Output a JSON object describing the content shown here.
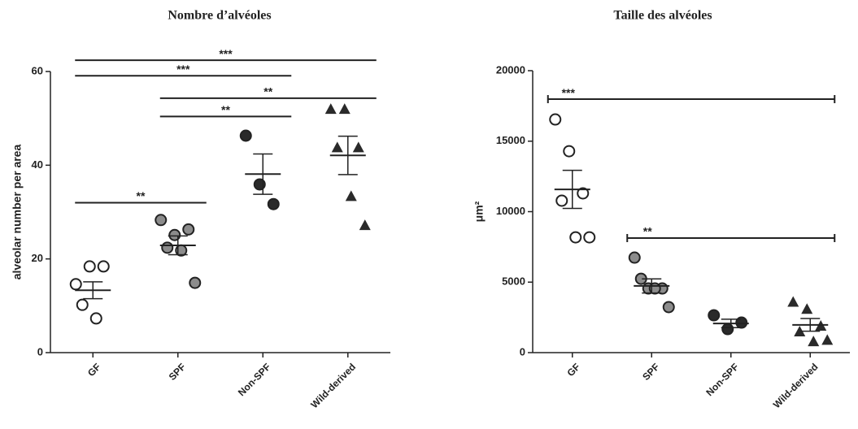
{
  "chart_data": [
    {
      "type": "dot",
      "title": "Nombre d’alvéoles",
      "y_label": "alveolar number per area",
      "categories": [
        "GF",
        "SPF",
        "Non-SPF",
        "Wild-derived"
      ],
      "points": [
        [
          14.6,
          18.4,
          18.4,
          10.2,
          7.3
        ],
        [
          28.3,
          25.1,
          26.3,
          22.4,
          21.8,
          14.9
        ],
        [
          46.3,
          35.9,
          31.7
        ],
        [
          52,
          52,
          43.8,
          43.8,
          33.4,
          27.2
        ]
      ],
      "means": [
        13.3,
        22.9,
        38.1,
        42.1
      ],
      "errors": [
        1.8,
        2.0,
        4.3,
        4.1
      ],
      "markers": [
        "open-circle",
        "gray-circle",
        "black-circle",
        "black-triangle"
      ],
      "ylim": [
        0,
        60
      ],
      "yticks": [
        0,
        20,
        40,
        60
      ],
      "brackets": [
        {
          "from": "GF",
          "to": "Wild-derived",
          "y": 62.4,
          "label": "***"
        },
        {
          "from": "GF",
          "to": "Non-SPF",
          "y": 59.1,
          "label": "***"
        },
        {
          "from": "SPF",
          "to": "Wild-derived",
          "y": 54.3,
          "label": "**"
        },
        {
          "from": "SPF",
          "to": "Non-SPF",
          "y": 50.4,
          "label": "**"
        },
        {
          "from": "GF",
          "to": "SPF",
          "y": 32,
          "label": "**"
        }
      ]
    },
    {
      "type": "dot",
      "title": "Taille des alvéoles",
      "y_label": "μm²",
      "categories": [
        "GF",
        "SPF",
        "Non-SPF",
        "Wild-derived"
      ],
      "points": [
        [
          16540,
          14290,
          11300,
          10780,
          8180,
          8180
        ],
        [
          6740,
          4550,
          4550,
          5240,
          4550,
          3230
        ],
        [
          2650,
          1670,
          2130
        ],
        [
          3600,
          3100,
          1900,
          1500,
          800,
          900
        ]
      ],
      "means": [
        11580,
        4730,
        2070,
        1970
      ],
      "errors": [
        1350,
        500,
        300,
        450
      ],
      "markers": [
        "open-circle",
        "gray-circle",
        "black-circle",
        "black-triangle"
      ],
      "ylim": [
        0,
        20000
      ],
      "yticks": [
        0,
        5000,
        10000,
        15000,
        20000
      ],
      "brackets": [
        {
          "from": "GF",
          "to": "Wild-derived",
          "y": 17980,
          "label": "***"
        },
        {
          "from": "SPF",
          "to": "Wild-derived",
          "y": 8130,
          "label": "**"
        }
      ]
    }
  ]
}
